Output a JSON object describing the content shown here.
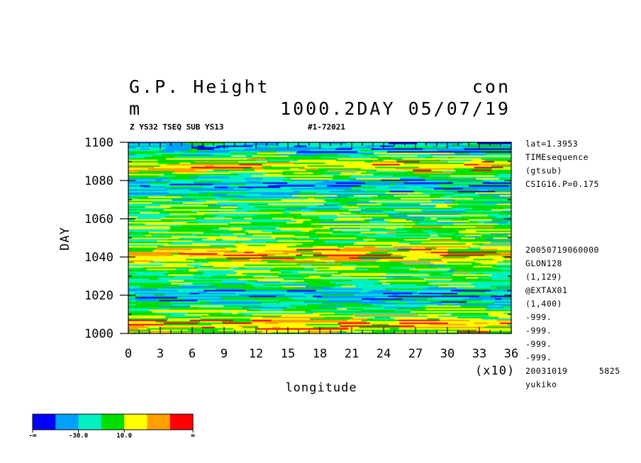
{
  "header": {
    "title_left": "G.P. Height",
    "title_right": "con",
    "units": "m",
    "subtitle_right": "1000.2DAY 05/07/19",
    "run_label": "Z YS32 TSEQ SUB YS13",
    "id_label": "#1-72021"
  },
  "chart_data": {
    "type": "heatmap",
    "xlabel": "longitude",
    "ylabel": "DAY",
    "xlim": [
      0,
      36
    ],
    "ylim": [
      1000,
      1100
    ],
    "x_ticks": [
      "0",
      "3",
      "6",
      "9",
      "12",
      "15",
      "18",
      "21",
      "24",
      "27",
      "30",
      "33",
      "36"
    ],
    "x_multiplier": "(x10)",
    "y_ticks": [
      "1000",
      "1020",
      "1040",
      "1060",
      "1080",
      "1100"
    ],
    "colorbar": {
      "colors": [
        "#0000ff",
        "#00a0ff",
        "#00f0c0",
        "#00e000",
        "#ffff00",
        "#ffa000",
        "#ff0000"
      ],
      "labels": [
        "-∞",
        "-30.0",
        "10.0",
        "∞"
      ]
    },
    "dominant_bands": [
      {
        "day": 1005,
        "level": "warm"
      },
      {
        "day": 1020,
        "level": "cool"
      },
      {
        "day": 1042,
        "level": "warm"
      },
      {
        "day": 1055,
        "level": "mixed"
      },
      {
        "day": 1078,
        "level": "cool"
      },
      {
        "day": 1088,
        "level": "warm"
      },
      {
        "day": 1097,
        "level": "cool"
      }
    ]
  },
  "side_info": {
    "top": [
      "lat=1.3953",
      "TIMEsequence",
      "(gtsub)",
      "CSIG16.P=0.175"
    ],
    "bottom": [
      "20050719060000",
      "GLON128",
      "(1,129)",
      "@EXTAX01",
      "(1,400)",
      "-999.",
      "-999.",
      "-999.",
      "-999.",
      "20031019      5825",
      "yukiko"
    ]
  }
}
